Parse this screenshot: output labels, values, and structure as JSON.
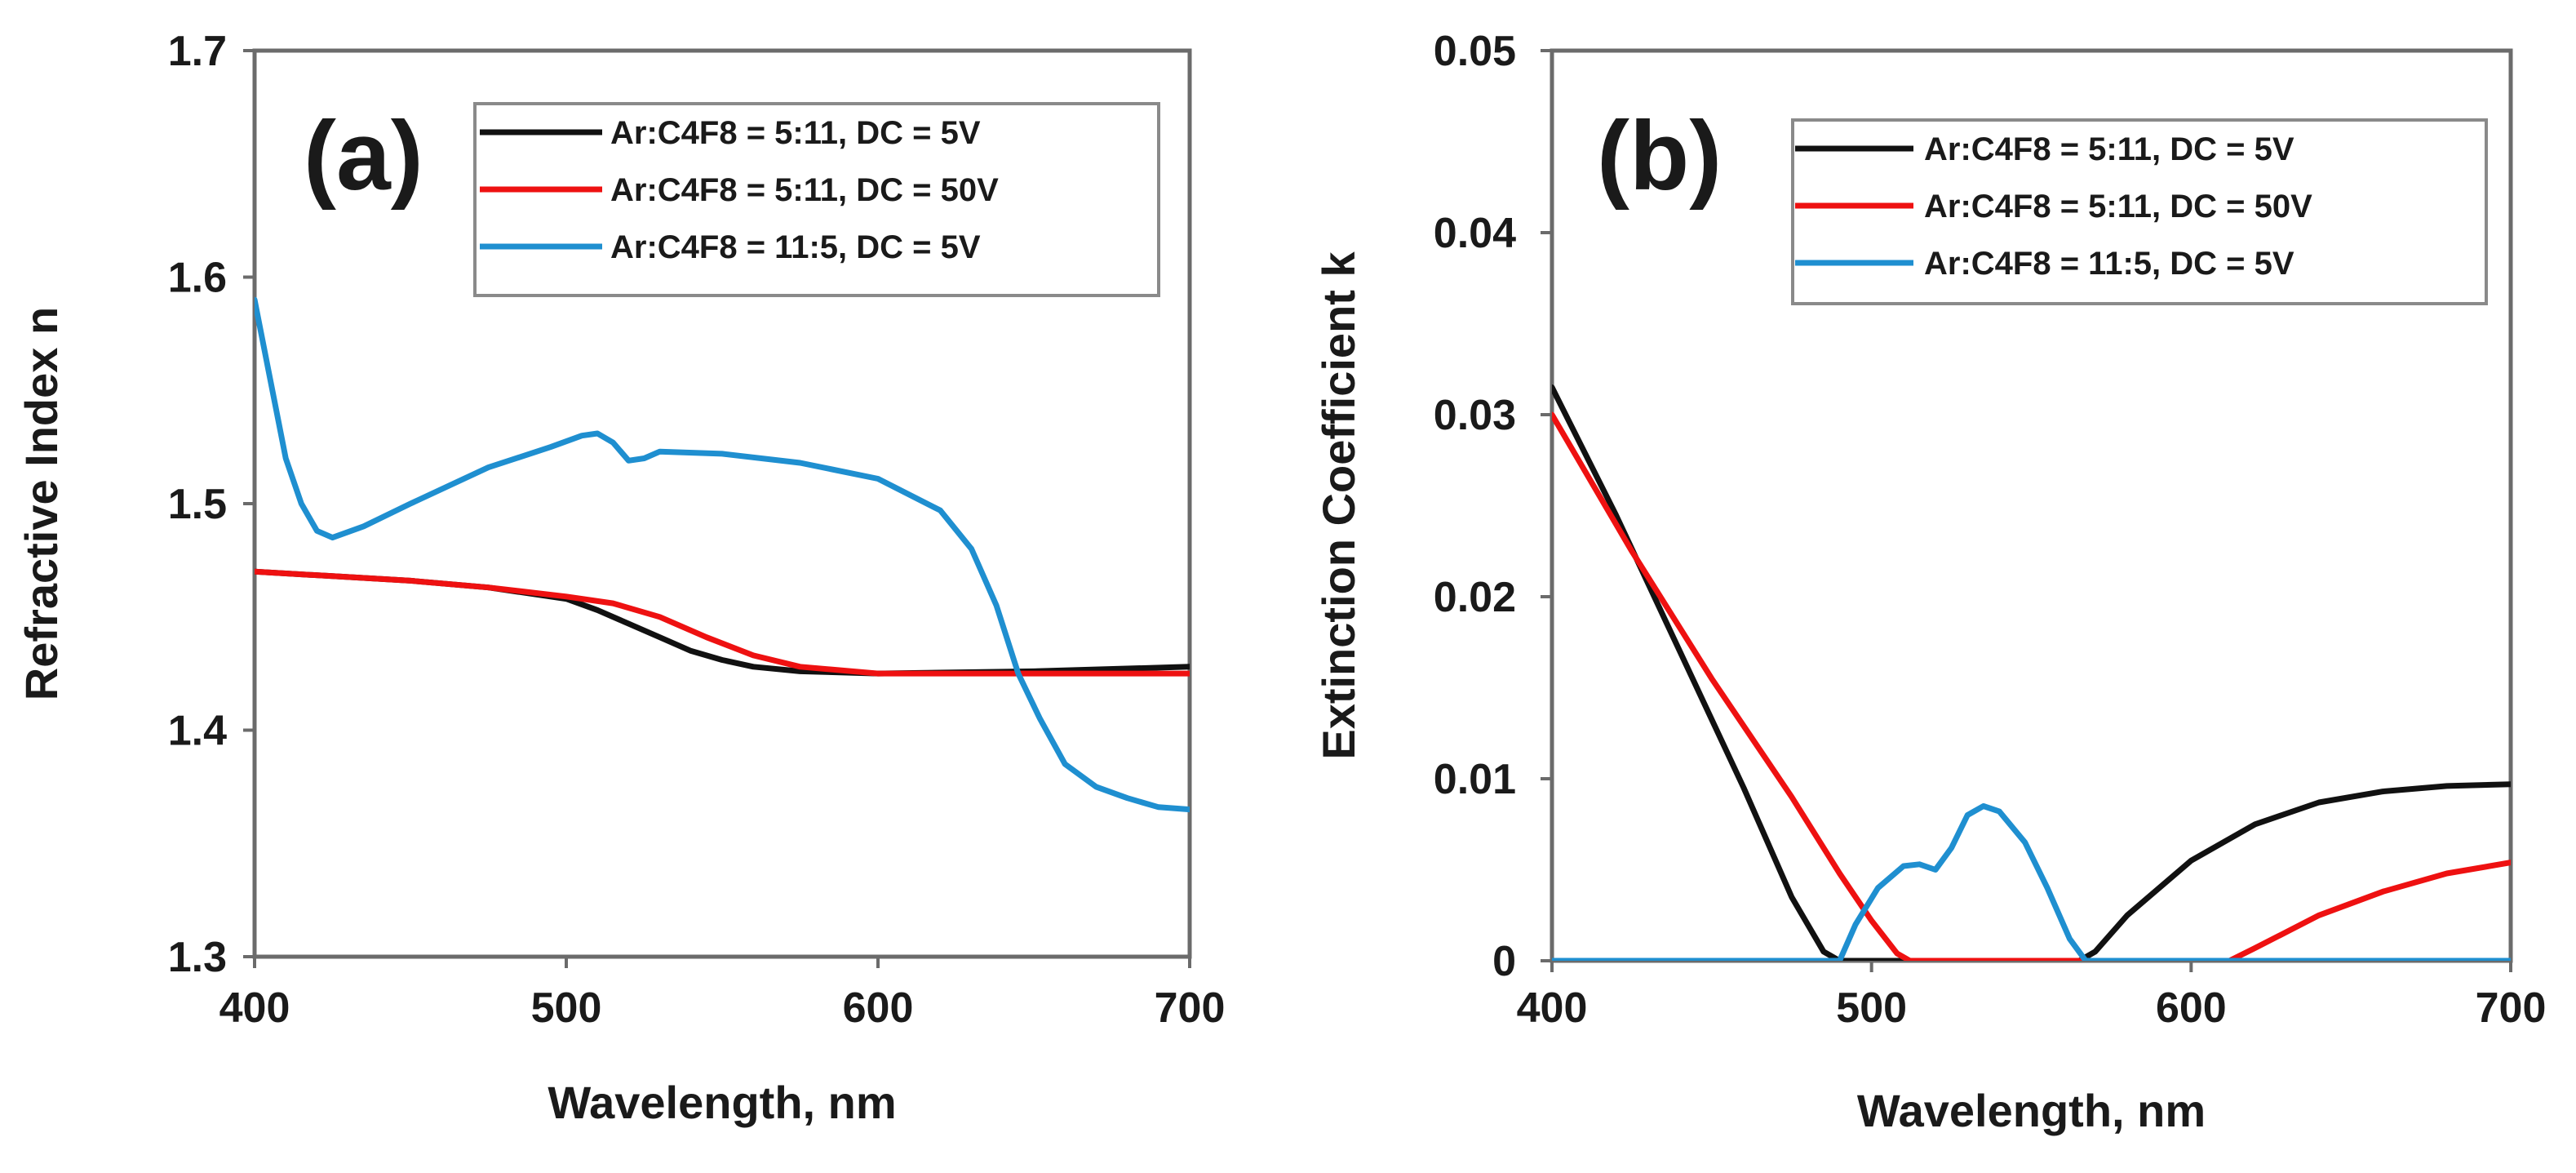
{
  "chart_data": [
    {
      "type": "line",
      "panel_label": "(a)",
      "xlabel": "Wavelength, nm",
      "ylabel": "Refractive Index n",
      "xlim": [
        400,
        700
      ],
      "ylim": [
        1.3,
        1.7
      ],
      "xticks": [
        "400",
        "500",
        "600",
        "700"
      ],
      "yticks": [
        "1.3",
        "1.4",
        "1.5",
        "1.6",
        "1.7"
      ],
      "grid": false,
      "legend_position": "top-right",
      "series": [
        {
          "name": "Ar:C4F8 = 5:11, DC = 5V",
          "color": "#111111",
          "points": [
            [
              400,
              1.47
            ],
            [
              425,
              1.468
            ],
            [
              450,
              1.466
            ],
            [
              475,
              1.463
            ],
            [
              500,
              1.458
            ],
            [
              510,
              1.453
            ],
            [
              520,
              1.447
            ],
            [
              530,
              1.441
            ],
            [
              540,
              1.435
            ],
            [
              550,
              1.431
            ],
            [
              560,
              1.428
            ],
            [
              575,
              1.426
            ],
            [
              600,
              1.425
            ],
            [
              650,
              1.426
            ],
            [
              700,
              1.428
            ]
          ]
        },
        {
          "name": "Ar:C4F8 = 5:11, DC = 50V",
          "color": "#ee1111",
          "points": [
            [
              400,
              1.47
            ],
            [
              425,
              1.468
            ],
            [
              450,
              1.466
            ],
            [
              475,
              1.463
            ],
            [
              500,
              1.459
            ],
            [
              515,
              1.456
            ],
            [
              530,
              1.45
            ],
            [
              545,
              1.441
            ],
            [
              560,
              1.433
            ],
            [
              575,
              1.428
            ],
            [
              600,
              1.425
            ],
            [
              650,
              1.425
            ],
            [
              700,
              1.425
            ]
          ]
        },
        {
          "name": "Ar:C4F8 = 11:5, DC = 5V",
          "color": "#1f8fd0",
          "points": [
            [
              400,
              1.59
            ],
            [
              405,
              1.555
            ],
            [
              410,
              1.52
            ],
            [
              415,
              1.5
            ],
            [
              420,
              1.488
            ],
            [
              425,
              1.485
            ],
            [
              435,
              1.49
            ],
            [
              450,
              1.5
            ],
            [
              475,
              1.516
            ],
            [
              495,
              1.525
            ],
            [
              505,
              1.53
            ],
            [
              510,
              1.531
            ],
            [
              515,
              1.527
            ],
            [
              520,
              1.519
            ],
            [
              525,
              1.52
            ],
            [
              530,
              1.523
            ],
            [
              550,
              1.522
            ],
            [
              575,
              1.518
            ],
            [
              600,
              1.511
            ],
            [
              620,
              1.497
            ],
            [
              630,
              1.48
            ],
            [
              638,
              1.455
            ],
            [
              645,
              1.425
            ],
            [
              652,
              1.405
            ],
            [
              660,
              1.385
            ],
            [
              670,
              1.375
            ],
            [
              680,
              1.37
            ],
            [
              690,
              1.366
            ],
            [
              700,
              1.365
            ]
          ]
        }
      ]
    },
    {
      "type": "line",
      "panel_label": "(b)",
      "xlabel": "Wavelength, nm",
      "ylabel": "Extinction Coefficient k",
      "xlim": [
        400,
        700
      ],
      "ylim": [
        0,
        0.05
      ],
      "xticks": [
        "400",
        "500",
        "600",
        "700"
      ],
      "yticks": [
        "0",
        "0.01",
        "0.02",
        "0.03",
        "0.04",
        "0.05"
      ],
      "grid": false,
      "legend_position": "top-right",
      "series": [
        {
          "name": "Ar:C4F8 = 5:11, DC = 5V",
          "color": "#111111",
          "points": [
            [
              400,
              0.0315
            ],
            [
              420,
              0.0245
            ],
            [
              440,
              0.017
            ],
            [
              460,
              0.0095
            ],
            [
              475,
              0.0035
            ],
            [
              485,
              0.0005
            ],
            [
              490,
              0
            ],
            [
              565,
              0
            ],
            [
              570,
              0.0005
            ],
            [
              580,
              0.0025
            ],
            [
              600,
              0.0055
            ],
            [
              620,
              0.0075
            ],
            [
              640,
              0.0087
            ],
            [
              660,
              0.0093
            ],
            [
              680,
              0.0096
            ],
            [
              700,
              0.0097
            ]
          ]
        },
        {
          "name": "Ar:C4F8 = 5:11, DC = 50V",
          "color": "#ee1111",
          "points": [
            [
              400,
              0.03
            ],
            [
              425,
              0.0225
            ],
            [
              450,
              0.0155
            ],
            [
              475,
              0.009
            ],
            [
              490,
              0.0048
            ],
            [
              500,
              0.0022
            ],
            [
              508,
              0.0004
            ],
            [
              512,
              0
            ],
            [
              612,
              0
            ],
            [
              620,
              0.0007
            ],
            [
              640,
              0.0025
            ],
            [
              660,
              0.0038
            ],
            [
              680,
              0.0048
            ],
            [
              700,
              0.0054
            ]
          ]
        },
        {
          "name": "Ar:C4F8 = 11:5, DC = 5V",
          "color": "#1f8fd0",
          "points": [
            [
              400,
              0
            ],
            [
              490,
              0
            ],
            [
              495,
              0.002
            ],
            [
              502,
              0.004
            ],
            [
              510,
              0.0052
            ],
            [
              515,
              0.0053
            ],
            [
              520,
              0.005
            ],
            [
              525,
              0.0062
            ],
            [
              530,
              0.008
            ],
            [
              535,
              0.0085
            ],
            [
              540,
              0.0082
            ],
            [
              548,
              0.0065
            ],
            [
              555,
              0.004
            ],
            [
              562,
              0.0012
            ],
            [
              567,
              0
            ],
            [
              700,
              0
            ]
          ]
        }
      ]
    }
  ]
}
